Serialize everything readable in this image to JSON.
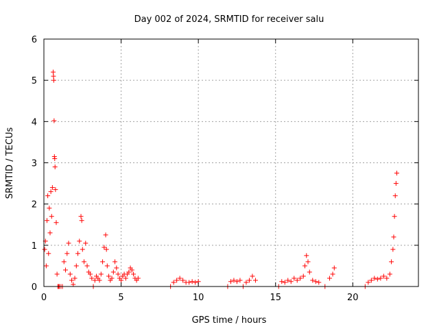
{
  "chart_data": {
    "type": "scatter",
    "title": "Day 002 of 2024, SRMTID for receiver salu",
    "xlabel": "GPS time / hours",
    "ylabel": "SRMTID / TECUs",
    "xlim": [
      0,
      24.25
    ],
    "ylim": [
      0,
      6
    ],
    "xticks": [
      0,
      5,
      10,
      15,
      20
    ],
    "yticks": [
      0,
      1,
      2,
      3,
      4,
      5,
      6
    ],
    "grid": true,
    "marker": "plus",
    "color": "#ff0000",
    "series": [
      {
        "name": "SRMTID",
        "x": [
          0.05,
          0.1,
          0.15,
          0.2,
          0.25,
          0.3,
          0.35,
          0.4,
          0.45,
          0.5,
          0.55,
          0.6,
          0.62,
          0.64,
          0.66,
          0.68,
          0.7,
          0.72,
          0.75,
          0.8,
          0.85,
          0.9,
          0.95,
          1.0,
          1.1,
          1.2,
          1.3,
          1.4,
          1.5,
          1.6,
          1.7,
          1.8,
          1.9,
          2.0,
          2.1,
          2.2,
          2.3,
          2.4,
          2.45,
          2.5,
          2.6,
          2.7,
          2.8,
          2.9,
          3.0,
          3.1,
          3.2,
          3.3,
          3.4,
          3.5,
          3.6,
          3.7,
          3.8,
          3.9,
          4.0,
          4.05,
          4.1,
          4.2,
          4.3,
          4.4,
          4.5,
          4.6,
          4.7,
          4.8,
          4.9,
          5.0,
          5.1,
          5.2,
          5.3,
          5.4,
          5.5,
          5.6,
          5.7,
          5.8,
          5.9,
          6.0,
          6.1,
          8.2,
          8.4,
          8.6,
          8.8,
          9.0,
          9.2,
          9.4,
          9.6,
          9.8,
          10.0,
          11.9,
          12.1,
          12.3,
          12.5,
          12.7,
          12.9,
          13.1,
          13.3,
          13.5,
          13.7,
          15.2,
          15.4,
          15.6,
          15.8,
          16.0,
          16.2,
          16.4,
          16.6,
          16.8,
          16.9,
          17.0,
          17.1,
          17.2,
          17.4,
          17.6,
          17.8,
          18.2,
          18.5,
          18.7,
          18.8,
          20.8,
          21.0,
          21.2,
          21.4,
          21.6,
          21.8,
          22.0,
          22.2,
          22.4,
          22.5,
          22.6,
          22.65,
          22.7,
          22.75,
          22.8,
          22.85
        ],
        "y": [
          0.9,
          1.1,
          0.5,
          1.6,
          2.2,
          0.8,
          1.9,
          1.3,
          2.3,
          1.7,
          2.4,
          5.2,
          5.1,
          5.0,
          4.02,
          3.15,
          3.1,
          2.9,
          2.35,
          1.55,
          0.3,
          0.0,
          0.0,
          0.0,
          0.0,
          0.0,
          0.6,
          0.4,
          0.8,
          1.05,
          0.3,
          0.15,
          0.05,
          0.2,
          0.5,
          0.8,
          1.1,
          1.7,
          1.6,
          0.9,
          0.6,
          1.05,
          0.5,
          0.35,
          0.3,
          0.2,
          0.0,
          0.15,
          0.25,
          0.2,
          0.15,
          0.3,
          0.6,
          0.95,
          1.25,
          0.9,
          0.5,
          0.25,
          0.15,
          0.2,
          0.35,
          0.6,
          0.45,
          0.3,
          0.2,
          0.15,
          0.25,
          0.3,
          0.2,
          0.3,
          0.35,
          0.45,
          0.4,
          0.3,
          0.2,
          0.15,
          0.2,
          0.0,
          0.1,
          0.15,
          0.2,
          0.15,
          0.1,
          0.1,
          0.12,
          0.1,
          0.12,
          0.0,
          0.12,
          0.15,
          0.12,
          0.15,
          0.0,
          0.1,
          0.15,
          0.25,
          0.15,
          0.0,
          0.12,
          0.1,
          0.15,
          0.12,
          0.2,
          0.15,
          0.2,
          0.25,
          0.5,
          0.75,
          0.6,
          0.35,
          0.15,
          0.12,
          0.1,
          0.0,
          0.2,
          0.3,
          0.45,
          0.0,
          0.1,
          0.15,
          0.2,
          0.18,
          0.2,
          0.25,
          0.2,
          0.3,
          0.6,
          0.9,
          1.2,
          1.7,
          2.2,
          2.5,
          2.75
        ]
      }
    ]
  }
}
